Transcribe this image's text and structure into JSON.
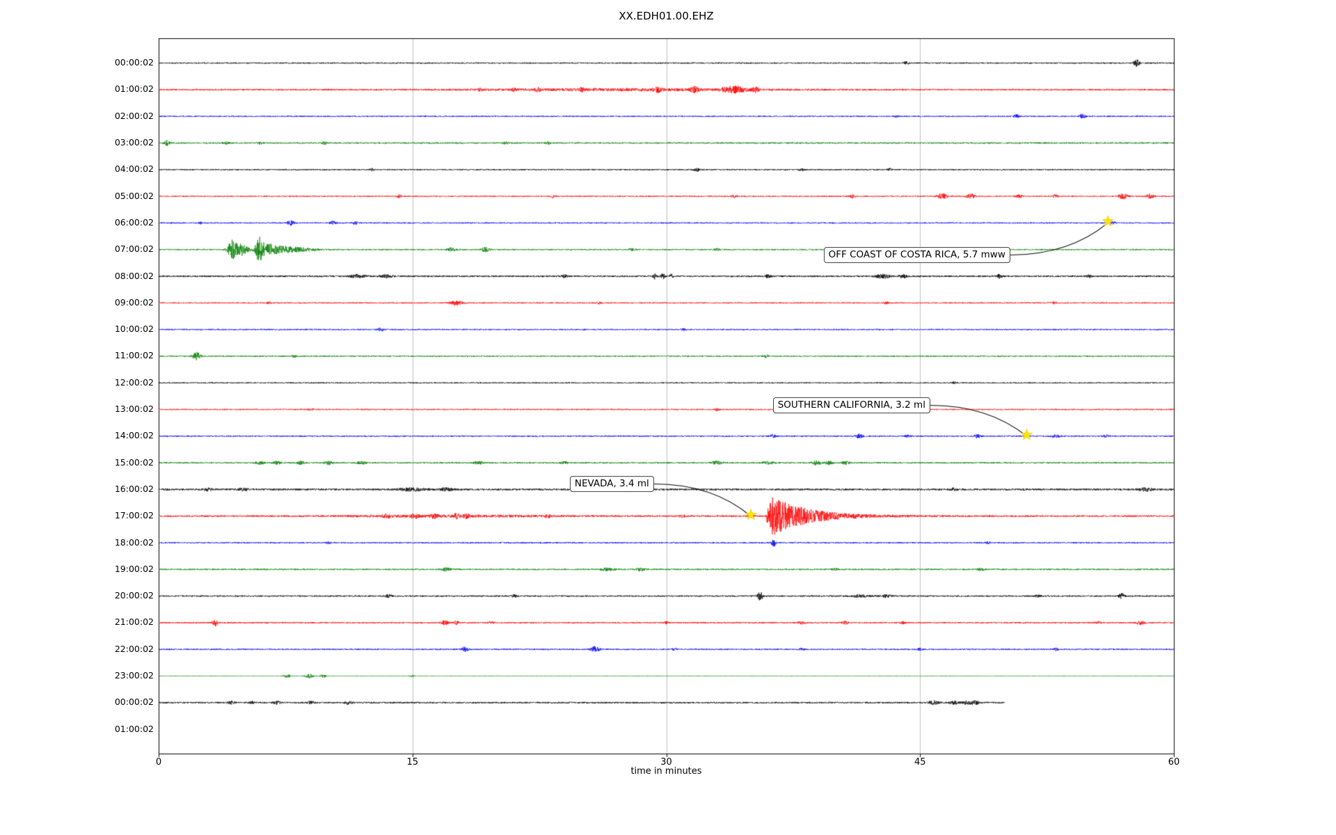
{
  "title": "XX.EDH01.00.EHZ",
  "xlabel": "time in minutes",
  "chart_data": {
    "type": "line",
    "subtype": "seismogram_dayplot",
    "station_id": "XX.EDH01.00.EHZ",
    "xlabel": "time in minutes",
    "x_range_minutes": [
      0,
      60
    ],
    "x_tick_labels": [
      "0",
      "15",
      "30",
      "45",
      "60"
    ],
    "x_tick_values": [
      0,
      15,
      30,
      45,
      60
    ],
    "grid_minutes": [
      15,
      30,
      45
    ],
    "grid_color": "#b9b9b9",
    "frame_color": "#000000",
    "star_color": "#ffe400",
    "trace_color_cycle": [
      "#000000",
      "#ff0000",
      "#0000ff",
      "#008000"
    ],
    "rows": [
      {
        "label": "00:00:02",
        "base": 0.9,
        "end": 60,
        "events": [
          {
            "t": 44.2,
            "a": 2,
            "d": 0.3
          },
          {
            "t": 57.8,
            "a": 4.5,
            "d": 0.35
          }
        ]
      },
      {
        "label": "01:00:02",
        "base": 1.1,
        "end": 60,
        "events": [
          {
            "t": 28,
            "a": 1.2,
            "d": 16
          },
          {
            "t": 19,
            "a": 1.5,
            "d": 0.3
          },
          {
            "t": 21,
            "a": 1.5,
            "d": 0.3
          },
          {
            "t": 22.4,
            "a": 2.5,
            "d": 0.3
          },
          {
            "t": 25,
            "a": 1.8,
            "d": 0.3
          },
          {
            "t": 29.5,
            "a": 3,
            "d": 0.4
          },
          {
            "t": 31.7,
            "a": 3.5,
            "d": 0.5
          },
          {
            "t": 34,
            "a": 4.5,
            "d": 1.4
          },
          {
            "t": 35.3,
            "a": 3,
            "d": 0.4
          }
        ]
      },
      {
        "label": "02:00:02",
        "base": 0.9,
        "end": 60,
        "events": [
          {
            "t": 43.6,
            "a": 1.5,
            "d": 0.2
          },
          {
            "t": 50.7,
            "a": 2.5,
            "d": 0.3
          },
          {
            "t": 54.6,
            "a": 4,
            "d": 0.3
          }
        ]
      },
      {
        "label": "03:00:02",
        "base": 1.0,
        "end": 60,
        "events": [
          {
            "t": 0.5,
            "a": 3.5,
            "d": 0.3
          },
          {
            "t": 4,
            "a": 1.5,
            "d": 0.3
          },
          {
            "t": 6,
            "a": 1.5,
            "d": 0.3
          },
          {
            "t": 9.8,
            "a": 1.8,
            "d": 0.3
          },
          {
            "t": 20.5,
            "a": 1.5,
            "d": 0.3
          },
          {
            "t": 23,
            "a": 1.5,
            "d": 0.3
          }
        ]
      },
      {
        "label": "04:00:02",
        "base": 0.9,
        "end": 60,
        "events": [
          {
            "t": 12.6,
            "a": 1.8,
            "d": 0.3
          },
          {
            "t": 31.8,
            "a": 2.2,
            "d": 0.4
          },
          {
            "t": 38,
            "a": 1.5,
            "d": 0.3
          },
          {
            "t": 43.2,
            "a": 1.5,
            "d": 0.25
          }
        ]
      },
      {
        "label": "05:00:02",
        "base": 0.9,
        "end": 60,
        "events": [
          {
            "t": 14.2,
            "a": 2.5,
            "d": 0.25
          },
          {
            "t": 23.3,
            "a": 2,
            "d": 0.25
          },
          {
            "t": 34,
            "a": 1.8,
            "d": 0.3
          },
          {
            "t": 41,
            "a": 2.2,
            "d": 0.3
          },
          {
            "t": 46.3,
            "a": 3.5,
            "d": 0.6
          },
          {
            "t": 48,
            "a": 3,
            "d": 0.5
          },
          {
            "t": 50.9,
            "a": 2.8,
            "d": 0.4
          },
          {
            "t": 53,
            "a": 2,
            "d": 0.3
          },
          {
            "t": 57,
            "a": 4,
            "d": 0.5
          },
          {
            "t": 58.6,
            "a": 3,
            "d": 0.4
          }
        ]
      },
      {
        "label": "06:00:02",
        "base": 0.9,
        "end": 60,
        "events": [
          {
            "t": 2.5,
            "a": 1.5,
            "d": 0.2
          },
          {
            "t": 7.8,
            "a": 3,
            "d": 0.4
          },
          {
            "t": 10.3,
            "a": 2.5,
            "d": 0.35
          },
          {
            "t": 11.6,
            "a": 2.2,
            "d": 0.3
          },
          {
            "t": 56.4,
            "a": 1.5,
            "d": 0.4
          }
        ]
      },
      {
        "label": "07:00:02",
        "base": 0.9,
        "end": 60,
        "events": [
          {
            "t": 4.35,
            "a": 13,
            "d": 0.5
          },
          {
            "t": 4.9,
            "a": 8,
            "d": 0.8
          },
          {
            "t": 5.95,
            "a": 15,
            "d": 0.45
          },
          {
            "t": 6.5,
            "a": 7,
            "d": 1.2
          },
          {
            "t": 7.5,
            "a": 4,
            "d": 1.5
          },
          {
            "t": 8.6,
            "a": 2,
            "d": 1.5
          },
          {
            "t": 17.3,
            "a": 2.5,
            "d": 0.5
          },
          {
            "t": 19.3,
            "a": 3,
            "d": 0.5
          },
          {
            "t": 28,
            "a": 1.5,
            "d": 0.4
          },
          {
            "t": 33,
            "a": 1.5,
            "d": 0.4
          }
        ]
      },
      {
        "label": "08:00:02",
        "base": 1.2,
        "end": 60,
        "events": [
          {
            "t": 11.8,
            "a": 2,
            "d": 1
          },
          {
            "t": 13.5,
            "a": 2,
            "d": 0.6
          },
          {
            "t": 24,
            "a": 2,
            "d": 0.3
          },
          {
            "t": 29.3,
            "a": 3.5,
            "d": 0.25
          },
          {
            "t": 29.8,
            "a": 3.5,
            "d": 0.25
          },
          {
            "t": 30.3,
            "a": 3,
            "d": 0.2
          },
          {
            "t": 36,
            "a": 2,
            "d": 0.3
          },
          {
            "t": 42.8,
            "a": 3,
            "d": 0.7
          },
          {
            "t": 44,
            "a": 2.5,
            "d": 0.4
          },
          {
            "t": 49.7,
            "a": 2.5,
            "d": 0.3
          },
          {
            "t": 55,
            "a": 1.8,
            "d": 0.3
          }
        ]
      },
      {
        "label": "09:00:02",
        "base": 0.9,
        "end": 60,
        "events": [
          {
            "t": 6.5,
            "a": 1.3,
            "d": 0.3
          },
          {
            "t": 17.6,
            "a": 2.8,
            "d": 0.7
          },
          {
            "t": 26,
            "a": 1.3,
            "d": 0.3
          },
          {
            "t": 43,
            "a": 1.3,
            "d": 0.3
          },
          {
            "t": 52.9,
            "a": 1.6,
            "d": 0.3
          }
        ]
      },
      {
        "label": "10:00:02",
        "base": 0.9,
        "end": 60,
        "events": [
          {
            "t": 13.1,
            "a": 2.2,
            "d": 0.4
          },
          {
            "t": 31,
            "a": 1.2,
            "d": 0.3
          }
        ]
      },
      {
        "label": "11:00:02",
        "base": 0.9,
        "end": 60,
        "events": [
          {
            "t": 2.25,
            "a": 5.5,
            "d": 0.45
          },
          {
            "t": 8,
            "a": 1.2,
            "d": 0.3
          },
          {
            "t": 35.9,
            "a": 2,
            "d": 0.3
          }
        ]
      },
      {
        "label": "12:00:02",
        "base": 0.85,
        "end": 60,
        "events": [
          {
            "t": 47,
            "a": 1.3,
            "d": 0.3
          }
        ]
      },
      {
        "label": "13:00:02",
        "base": 0.9,
        "end": 60,
        "events": [
          {
            "t": 9,
            "a": 1.2,
            "d": 0.3
          },
          {
            "t": 33,
            "a": 1.3,
            "d": 0.3
          }
        ]
      },
      {
        "label": "14:00:02",
        "base": 0.95,
        "end": 60,
        "events": [
          {
            "t": 36.3,
            "a": 2.5,
            "d": 0.3
          },
          {
            "t": 41.4,
            "a": 2.8,
            "d": 0.4
          },
          {
            "t": 44.3,
            "a": 1.8,
            "d": 0.3
          },
          {
            "t": 48.4,
            "a": 2.5,
            "d": 0.35
          },
          {
            "t": 53,
            "a": 1.5,
            "d": 0.5
          },
          {
            "t": 56,
            "a": 1.5,
            "d": 0.4
          }
        ]
      },
      {
        "label": "15:00:02",
        "base": 1.0,
        "end": 60,
        "events": [
          {
            "t": 6,
            "a": 2.2,
            "d": 0.5
          },
          {
            "t": 7,
            "a": 2.2,
            "d": 0.4
          },
          {
            "t": 8.4,
            "a": 2.4,
            "d": 0.4
          },
          {
            "t": 10,
            "a": 2.6,
            "d": 0.5
          },
          {
            "t": 12,
            "a": 1.8,
            "d": 0.5
          },
          {
            "t": 18.9,
            "a": 2.4,
            "d": 0.5
          },
          {
            "t": 24,
            "a": 1.5,
            "d": 0.4
          },
          {
            "t": 33,
            "a": 2.2,
            "d": 0.6
          },
          {
            "t": 36,
            "a": 1.8,
            "d": 0.8
          },
          {
            "t": 38.9,
            "a": 3,
            "d": 0.5
          },
          {
            "t": 39.6,
            "a": 3,
            "d": 0.4
          },
          {
            "t": 40.6,
            "a": 2.4,
            "d": 0.4
          }
        ]
      },
      {
        "label": "16:00:02",
        "base": 1.3,
        "end": 60,
        "events": [
          {
            "t": 2.9,
            "a": 2.2,
            "d": 0.4
          },
          {
            "t": 5,
            "a": 1.8,
            "d": 0.6
          },
          {
            "t": 15,
            "a": 2,
            "d": 1.5
          },
          {
            "t": 17,
            "a": 2,
            "d": 0.8
          },
          {
            "t": 28,
            "a": 1.6,
            "d": 0.5
          },
          {
            "t": 47,
            "a": 1.6,
            "d": 0.5
          },
          {
            "t": 58.3,
            "a": 2.2,
            "d": 0.8
          }
        ]
      },
      {
        "label": "17:00:02",
        "base": 1.2,
        "end": 60,
        "events": [
          {
            "t": 17,
            "a": 1,
            "d": 12
          },
          {
            "t": 13.5,
            "a": 2.6,
            "d": 0.4
          },
          {
            "t": 15.1,
            "a": 3,
            "d": 0.4
          },
          {
            "t": 16.3,
            "a": 2.6,
            "d": 0.35
          },
          {
            "t": 17.6,
            "a": 2.8,
            "d": 0.4
          },
          {
            "t": 18.2,
            "a": 2.4,
            "d": 0.3
          },
          {
            "t": 23,
            "a": 1.8,
            "d": 0.4
          },
          {
            "t": 31,
            "a": 1.5,
            "d": 0.4
          },
          {
            "t": 35.0,
            "a": 3,
            "d": 0.3
          },
          {
            "type": "q",
            "t": 35.9,
            "a": 34,
            "attack": 0.15,
            "decay": 2.0
          }
        ]
      },
      {
        "label": "18:00:02",
        "base": 0.95,
        "end": 60,
        "events": [
          {
            "t": 10,
            "a": 1.2,
            "d": 0.3
          },
          {
            "t": 36.35,
            "a": 5.5,
            "d": 0.25
          },
          {
            "t": 49,
            "a": 1.2,
            "d": 0.3
          }
        ]
      },
      {
        "label": "19:00:02",
        "base": 1.0,
        "end": 60,
        "events": [
          {
            "t": 17,
            "a": 2,
            "d": 0.6
          },
          {
            "t": 26.5,
            "a": 1.8,
            "d": 0.8
          },
          {
            "t": 28.5,
            "a": 1.8,
            "d": 0.6
          },
          {
            "t": 40,
            "a": 1.4,
            "d": 0.4
          },
          {
            "t": 48.6,
            "a": 1.6,
            "d": 0.4
          }
        ]
      },
      {
        "label": "20:00:02",
        "base": 1.0,
        "end": 60,
        "events": [
          {
            "t": 13.6,
            "a": 2,
            "d": 0.4
          },
          {
            "t": 21,
            "a": 1.6,
            "d": 0.4
          },
          {
            "t": 35.55,
            "a": 6.5,
            "d": 0.3
          },
          {
            "t": 41.5,
            "a": 1.8,
            "d": 1.2
          },
          {
            "t": 43,
            "a": 1.8,
            "d": 0.8
          },
          {
            "t": 52,
            "a": 1.5,
            "d": 0.4
          },
          {
            "t": 56.9,
            "a": 4,
            "d": 0.35
          }
        ]
      },
      {
        "label": "21:00:02",
        "base": 1.0,
        "end": 60,
        "events": [
          {
            "t": 3.35,
            "a": 4.5,
            "d": 0.3
          },
          {
            "t": 16.9,
            "a": 3.2,
            "d": 0.4
          },
          {
            "t": 17.6,
            "a": 2.4,
            "d": 0.3
          },
          {
            "t": 19.6,
            "a": 2,
            "d": 0.35
          },
          {
            "t": 30,
            "a": 1.5,
            "d": 0.3
          },
          {
            "t": 38,
            "a": 2,
            "d": 0.4
          },
          {
            "t": 40.6,
            "a": 2.2,
            "d": 0.4
          },
          {
            "t": 44,
            "a": 1.6,
            "d": 0.3
          },
          {
            "t": 55.5,
            "a": 1.8,
            "d": 0.3
          },
          {
            "t": 58,
            "a": 2.4,
            "d": 0.5
          }
        ]
      },
      {
        "label": "22:00:02",
        "base": 0.95,
        "end": 60,
        "events": [
          {
            "t": 18.1,
            "a": 3.5,
            "d": 0.4
          },
          {
            "t": 25.8,
            "a": 4,
            "d": 0.5
          },
          {
            "t": 30.5,
            "a": 1.5,
            "d": 0.3
          },
          {
            "t": 38,
            "a": 1.5,
            "d": 0.3
          },
          {
            "t": 45,
            "a": 1.8,
            "d": 0.3
          },
          {
            "t": 53,
            "a": 1.8,
            "d": 0.3
          }
        ]
      },
      {
        "label": "23:00:02",
        "base": 0.4,
        "end": 60,
        "events": [
          {
            "t": 7.6,
            "a": 2.5,
            "d": 0.4
          },
          {
            "t": 8.9,
            "a": 3,
            "d": 0.45
          },
          {
            "t": 9.7,
            "a": 2.5,
            "d": 0.35
          },
          {
            "t": 15,
            "a": 1,
            "d": 0.3
          }
        ]
      },
      {
        "label": "00:00:02",
        "base": 1.1,
        "end": 50,
        "events": [
          {
            "t": 4.3,
            "a": 2,
            "d": 0.4
          },
          {
            "t": 5.5,
            "a": 1.8,
            "d": 0.3
          },
          {
            "t": 7,
            "a": 2,
            "d": 0.4
          },
          {
            "t": 9,
            "a": 1.8,
            "d": 0.4
          },
          {
            "t": 11.2,
            "a": 2.4,
            "d": 0.4
          },
          {
            "t": 45.8,
            "a": 2.6,
            "d": 0.6
          },
          {
            "t": 47,
            "a": 2.4,
            "d": 0.5
          },
          {
            "t": 47.8,
            "a": 2.8,
            "d": 0.6
          },
          {
            "t": 48.3,
            "a": 2.4,
            "d": 0.4
          }
        ]
      },
      {
        "label": "01:00:02",
        "base": 0,
        "end": 0,
        "events": []
      }
    ],
    "annotations": [
      {
        "text": "OFF COAST OF COSTA RICA, 5.7 mww",
        "magnitude": "5.7 mww",
        "region": "OFF COAST OF COSTA RICA",
        "star_min": 56.1,
        "star_row": 6,
        "box_min": 39.3,
        "box_row": 7.2
      },
      {
        "text": "SOUTHERN CALIFORNIA, 3.2 ml",
        "magnitude": "3.2 ml",
        "region": "SOUTHERN CALIFORNIA",
        "star_min": 51.3,
        "star_row": 14,
        "box_min": 36.3,
        "box_row": 12.85
      },
      {
        "text": "NEVADA, 3.4 ml",
        "magnitude": "3.4 ml",
        "region": "NEVADA",
        "star_min": 35.0,
        "star_row": 17,
        "box_min": 24.3,
        "box_row": 15.8
      }
    ]
  }
}
